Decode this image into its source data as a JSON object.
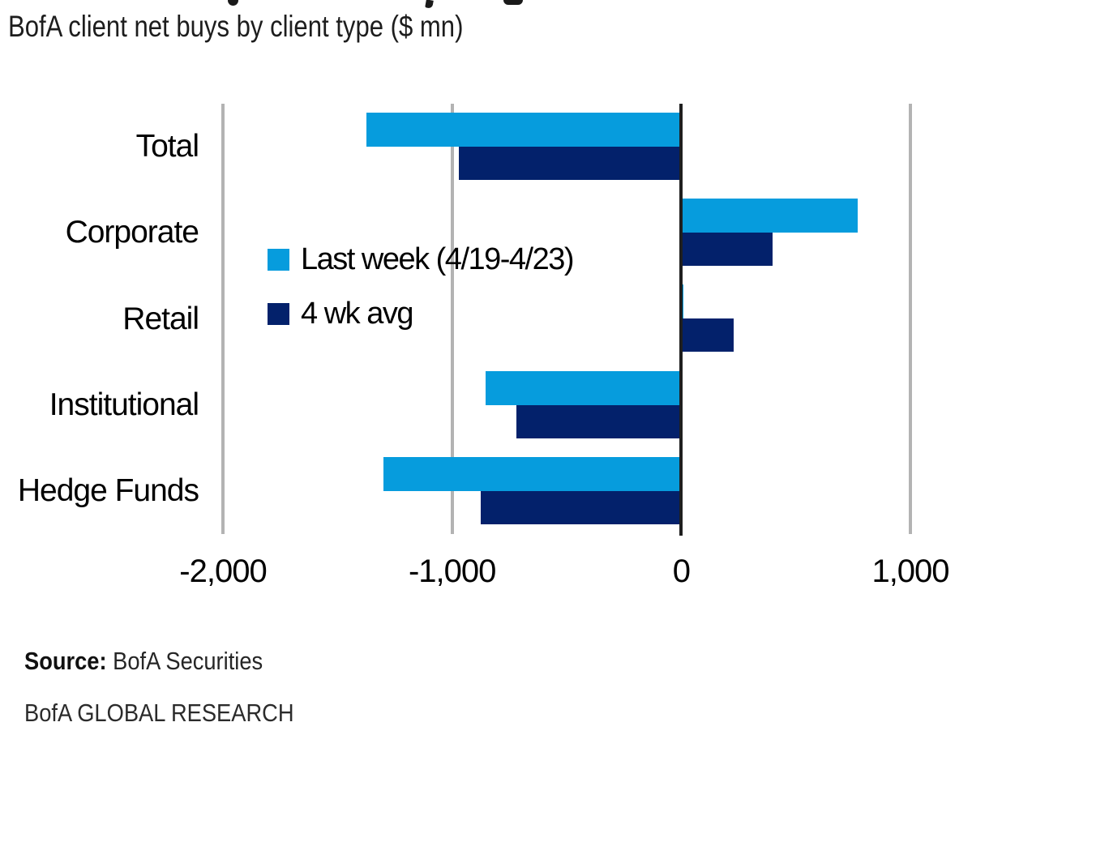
{
  "header": {
    "subtitle": "BofA client net buys by client type ($ mn)"
  },
  "chart_data": {
    "type": "bar",
    "orientation": "horizontal",
    "title": "BofA client net buys by client type ($ mn)",
    "categories": [
      "Total",
      "Corporate",
      "Retail",
      "Institutional",
      "Hedge Funds"
    ],
    "series": [
      {
        "name": "Last week (4/19-4/23)",
        "color": "#069CDD",
        "values": [
          -1375,
          770,
          10,
          -855,
          -1300
        ]
      },
      {
        "name": "4 wk avg",
        "color": "#03216B",
        "values": [
          -970,
          400,
          230,
          -720,
          -875
        ]
      }
    ],
    "xlim": [
      -2000,
      1500
    ],
    "xticks": [
      -2000,
      -1000,
      0,
      1000
    ],
    "xtick_labels": [
      "-2,000",
      "-1,000",
      "0",
      "1,000"
    ],
    "grid": "vertical-gridlines",
    "legend_position": "inside-center-left",
    "zero_line_color": "#1f1f1f",
    "gridline_color": "#b3b3b3"
  },
  "footer": {
    "source_label": "Source:",
    "source_text": "BofA Securities",
    "branding": "BofA GLOBAL RESEARCH"
  }
}
